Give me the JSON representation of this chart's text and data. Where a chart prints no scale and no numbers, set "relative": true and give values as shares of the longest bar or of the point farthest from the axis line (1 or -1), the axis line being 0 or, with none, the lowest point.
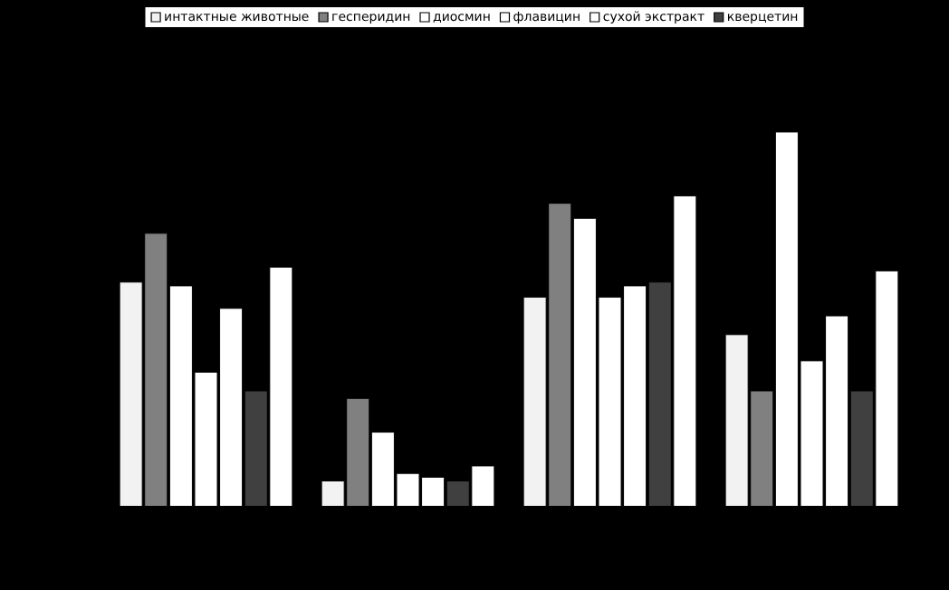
{
  "chart_data": {
    "type": "bar",
    "relative": true,
    "categories": [
      null,
      null,
      null,
      null
    ],
    "legend": "top",
    "series": [
      {
        "name": "интактные животные",
        "color": "#f2f2f2",
        "values": [
          0.6,
          0.07,
          0.56,
          0.46
        ]
      },
      {
        "name": "гесперидин",
        "color": "#808080",
        "values": [
          0.73,
          0.29,
          0.81,
          0.31
        ]
      },
      {
        "name": "диосмин",
        "color": "#ffffff",
        "values": [
          0.59,
          0.2,
          0.77,
          1
        ]
      },
      {
        "name": "флавицин",
        "color": "#ffffff",
        "values": [
          0.36,
          0.09,
          0.56,
          0.39
        ]
      },
      {
        "name": "сухой экстракт",
        "color": "#ffffff",
        "values": [
          0.53,
          0.08,
          0.59,
          0.51
        ]
      },
      {
        "name": "кверцетин",
        "color": "#404040",
        "values": [
          0.31,
          0.07,
          0.6,
          0.31
        ]
      },
      {
        "color": "#ffffff",
        "values": [
          0.64,
          0.11,
          0.83,
          0.63
        ]
      }
    ]
  }
}
